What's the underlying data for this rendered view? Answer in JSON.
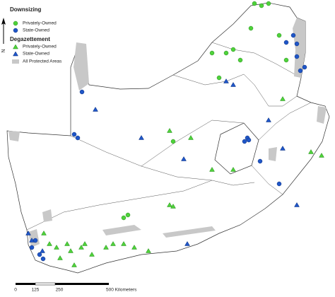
{
  "legend": {
    "groups": [
      {
        "title": "Downsizing",
        "items": [
          "Privately-Owned",
          "State-Owned"
        ]
      },
      {
        "title": "Degazettement",
        "items": [
          "Privately-Owned",
          "State-Owned"
        ]
      }
    ],
    "protected_areas": "All Protected Areas"
  },
  "north_arrow": "N",
  "scale_bar": [
    "0",
    "125",
    "250",
    "500 Kilometers"
  ]
}
